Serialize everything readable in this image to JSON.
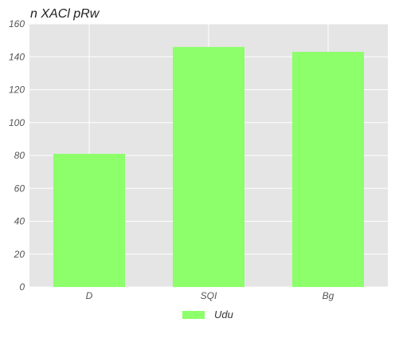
{
  "chart_data": {
    "type": "bar",
    "title": "n XACl  pRw",
    "xlabel": "",
    "ylabel": "",
    "categories": [
      "D",
      "SQI",
      "Bg"
    ],
    "series": [
      {
        "name": "Udu",
        "values": [
          81,
          146,
          143
        ],
        "color": "#8cff6a"
      }
    ],
    "ylim": [
      0,
      160
    ],
    "yticks": [
      0,
      20,
      40,
      60,
      80,
      100,
      120,
      140,
      160
    ],
    "grid": true,
    "legend_position": "bottom-center",
    "background_color": "#e5e5e5",
    "grid_color": "#ffffff"
  }
}
